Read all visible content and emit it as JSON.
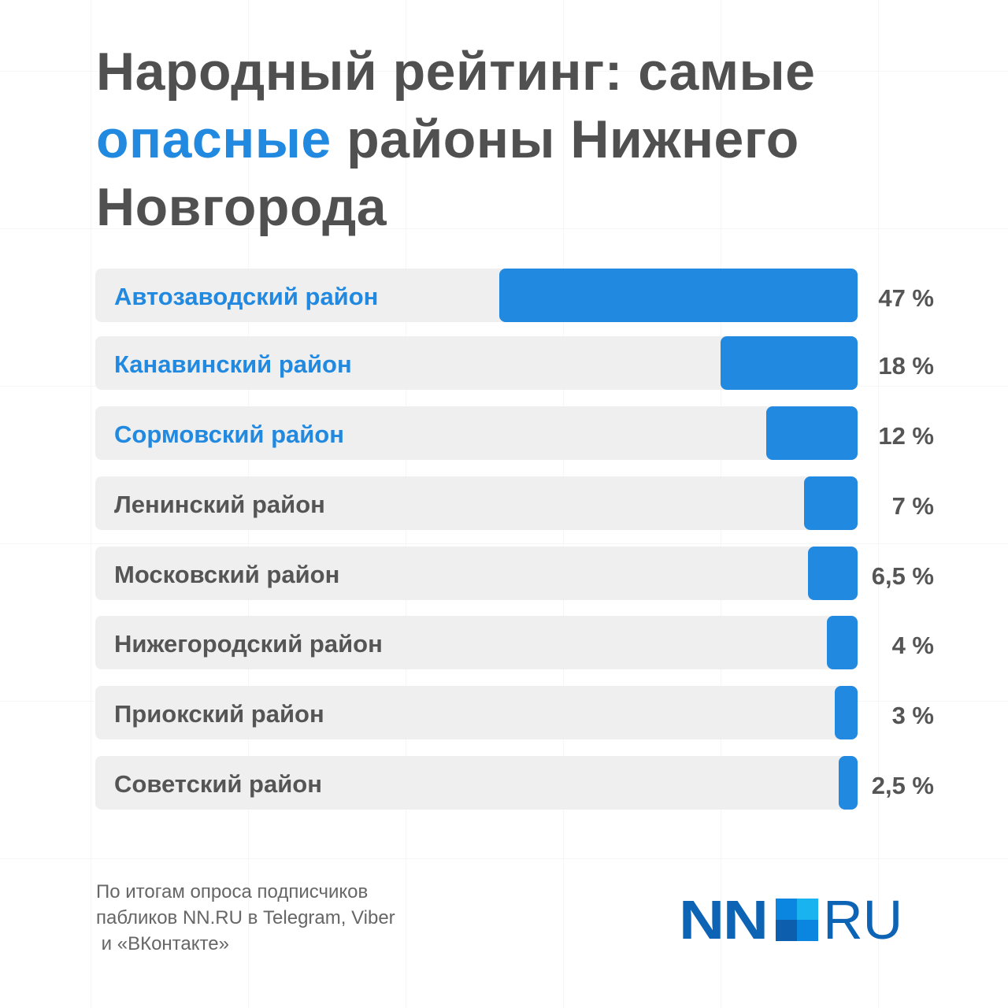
{
  "title": {
    "line_part1": "Народный рейтинг: самые",
    "highlight": "опасные",
    "line_part2": "районы Нижнего Новгорода"
  },
  "chart_data": {
    "type": "bar",
    "orientation": "horizontal",
    "categories": [
      "Автозаводский район",
      "Канавинский район",
      "Сормовский район",
      "Ленинский район",
      "Московский район",
      "Нижегородский район",
      "Приокский район",
      "Советский район"
    ],
    "values": [
      47,
      18,
      12,
      7,
      6.5,
      4,
      3,
      2.5
    ],
    "value_labels": [
      "47 %",
      "18 %",
      "12 %",
      "7 %",
      "6,5 %",
      "4 %",
      "3 %",
      "2,5 %"
    ],
    "highlighted": [
      true,
      true,
      true,
      false,
      false,
      false,
      false,
      false
    ],
    "xlim": [
      0,
      100
    ],
    "colors": {
      "bar": "#2189e0",
      "track": "#efefef",
      "highlight_label": "#2189e0",
      "label": "#555555"
    }
  },
  "footer": {
    "line1": "По итогам опроса подписчиков",
    "line2": "пабликов NN.RU в Telegram, Viber",
    "line3": " и «ВКонтакте»"
  },
  "logo": {
    "left": "NN",
    "right": "RU"
  }
}
